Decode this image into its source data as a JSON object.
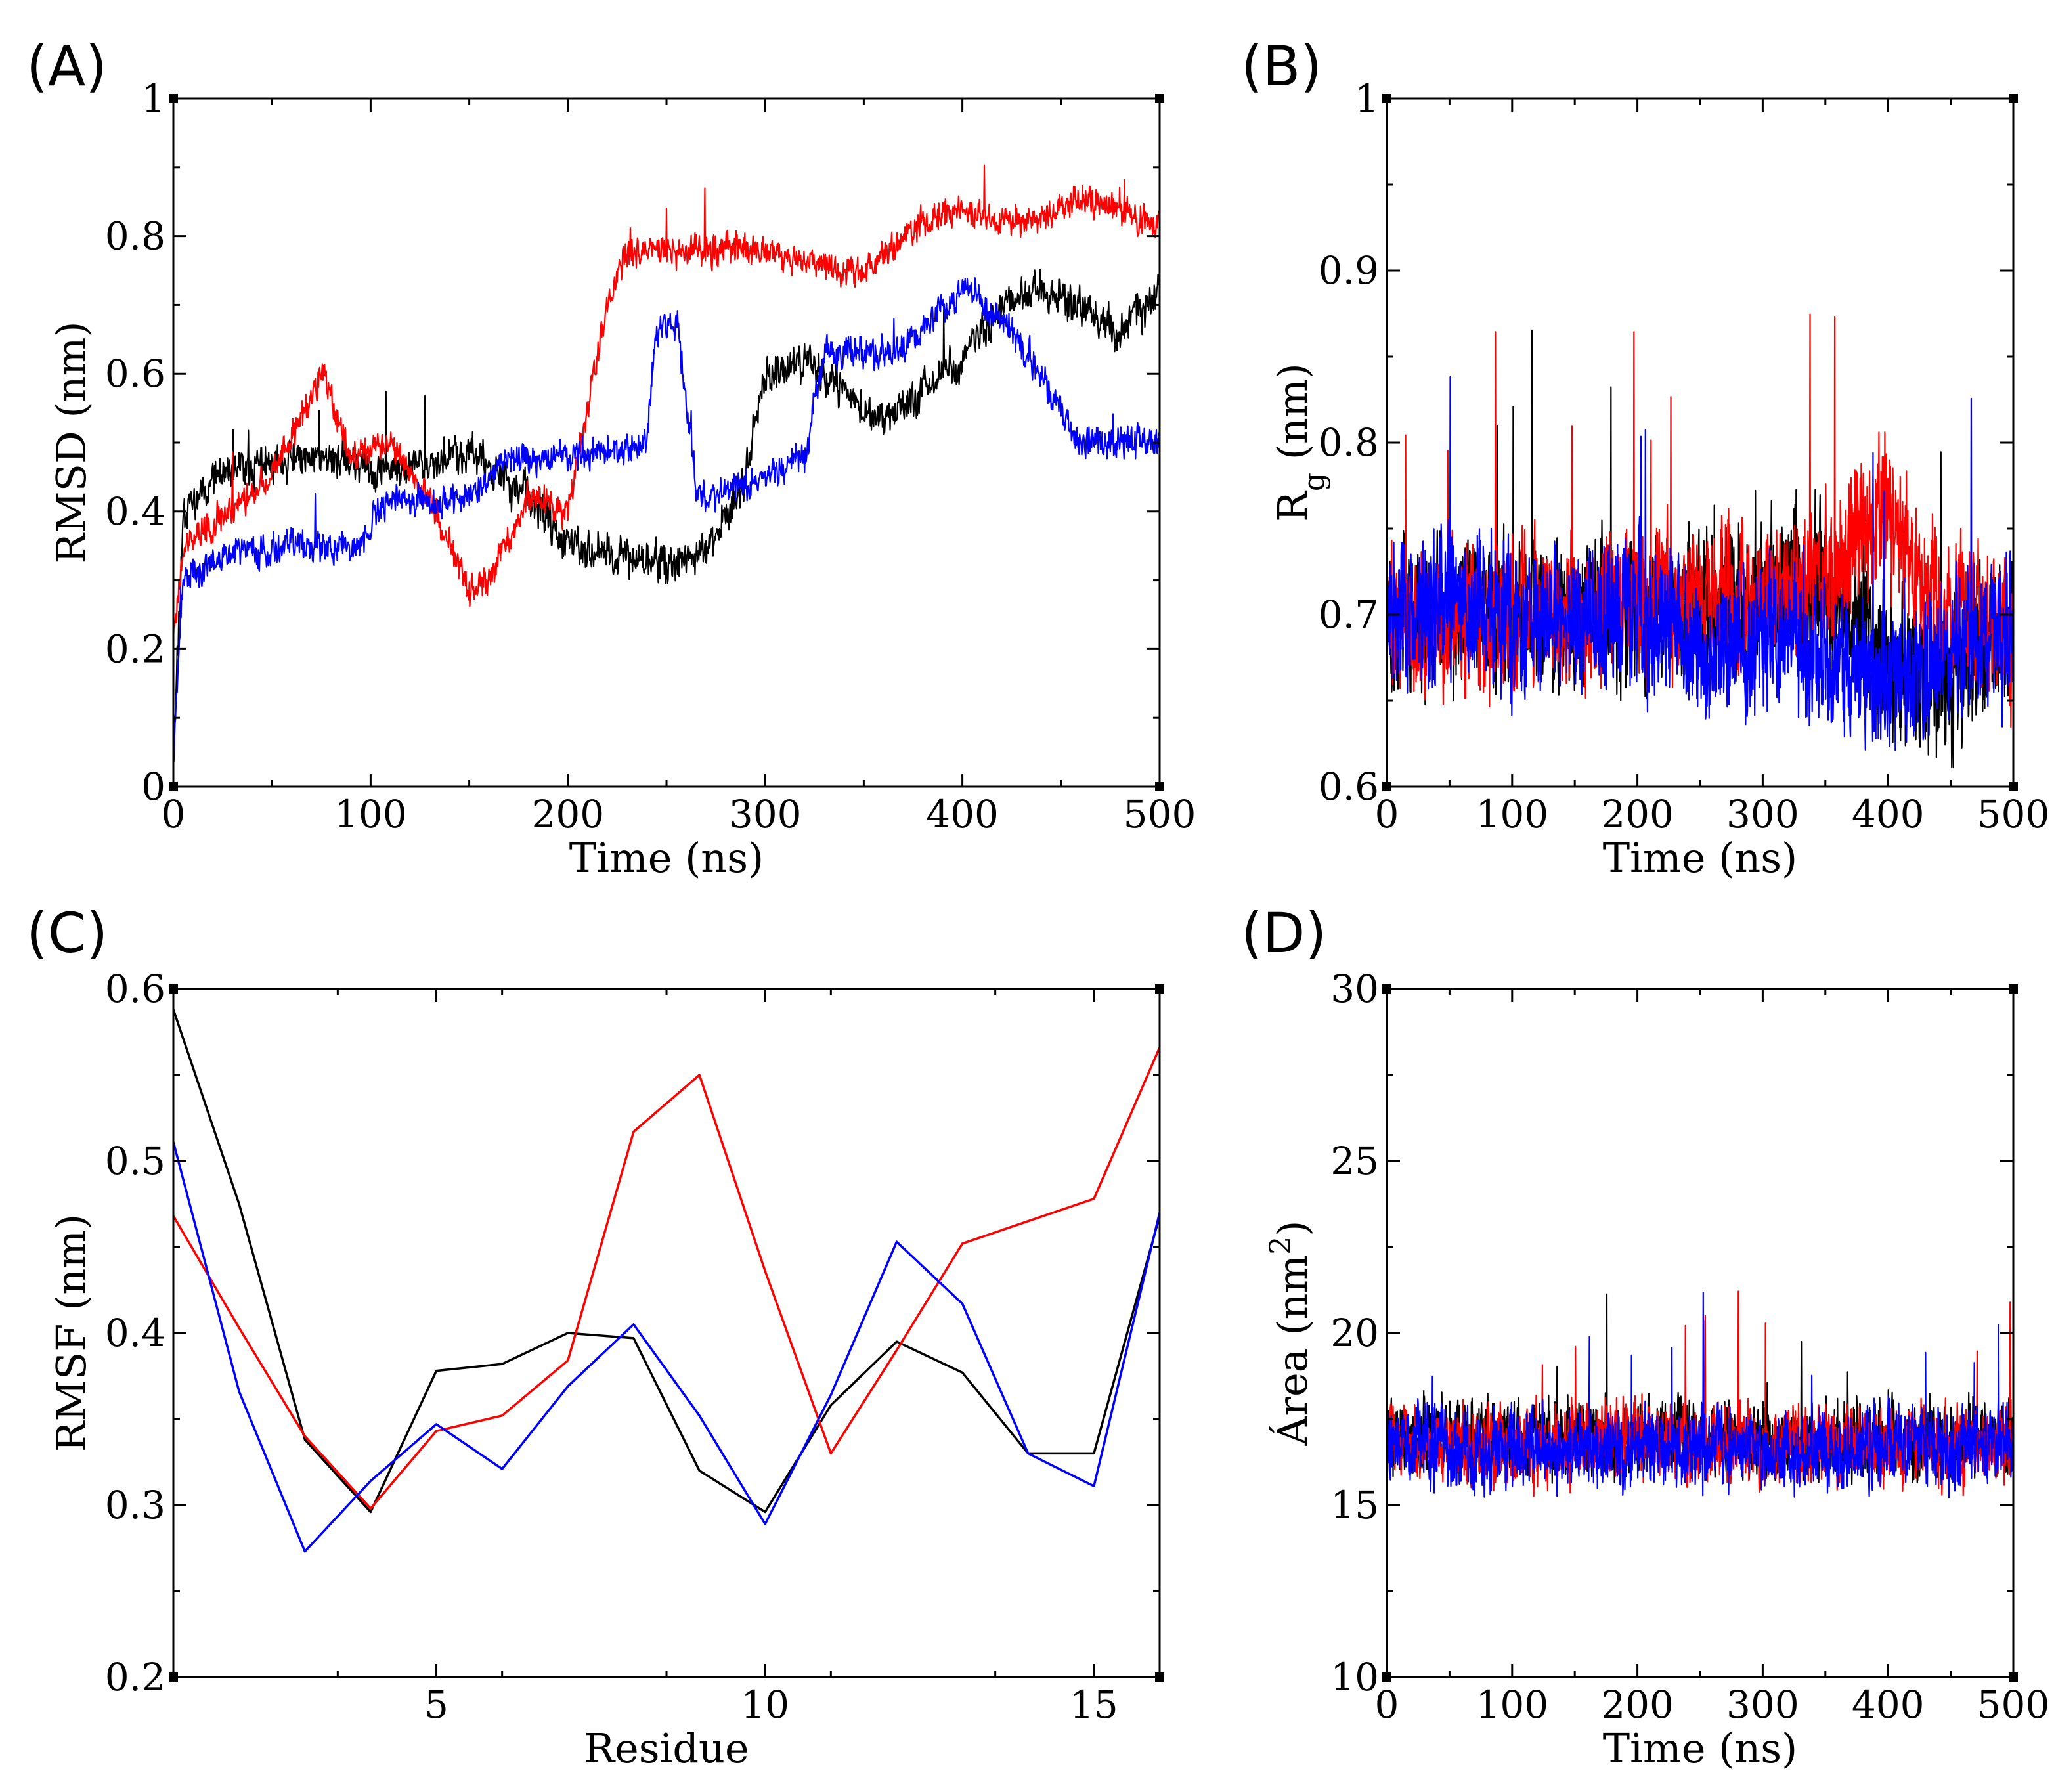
{
  "chart_data": [
    {
      "panel": "(A)",
      "type": "line",
      "xlabel": "Time (ns)",
      "ylabel": "RMSD (nm)",
      "xlim": [
        0,
        500
      ],
      "ylim": [
        0,
        1
      ],
      "xticks": [
        0,
        100,
        200,
        300,
        400,
        500
      ],
      "yticks": [
        0,
        0.2,
        0.4,
        0.6,
        0.8,
        1
      ],
      "ytick_labels": [
        "0",
        "0.2",
        "0.4",
        "0.6",
        "0.8",
        "1"
      ],
      "series": [
        {
          "color": "#000000",
          "noise": 0.06,
          "seed": 11,
          "x": [
            0,
            5,
            20,
            50,
            80,
            100,
            130,
            150,
            180,
            200,
            230,
            250,
            270,
            290,
            300,
            320,
            340,
            360,
            380,
            400,
            420,
            440,
            460,
            480,
            500
          ],
          "y": [
            0.05,
            0.4,
            0.45,
            0.47,
            0.48,
            0.46,
            0.47,
            0.49,
            0.42,
            0.35,
            0.33,
            0.32,
            0.34,
            0.45,
            0.6,
            0.62,
            0.58,
            0.52,
            0.58,
            0.62,
            0.7,
            0.72,
            0.7,
            0.66,
            0.72
          ]
        },
        {
          "color": "#ff0000",
          "noise": 0.05,
          "seed": 23,
          "x": [
            0,
            5,
            20,
            50,
            75,
            90,
            110,
            130,
            150,
            160,
            180,
            200,
            210,
            220,
            230,
            260,
            300,
            320,
            350,
            380,
            400,
            420,
            440,
            460,
            480,
            500
          ],
          "y": [
            0.22,
            0.35,
            0.38,
            0.45,
            0.6,
            0.48,
            0.5,
            0.42,
            0.28,
            0.3,
            0.42,
            0.4,
            0.55,
            0.7,
            0.78,
            0.78,
            0.78,
            0.76,
            0.75,
            0.82,
            0.84,
            0.82,
            0.83,
            0.85,
            0.84,
            0.82
          ]
        },
        {
          "color": "#0000ff",
          "noise": 0.05,
          "seed": 37,
          "x": [
            0,
            5,
            30,
            60,
            90,
            110,
            150,
            170,
            200,
            240,
            245,
            255,
            265,
            270,
            300,
            320,
            330,
            360,
            370,
            400,
            410,
            420,
            440,
            450,
            460,
            500
          ],
          "y": [
            0.05,
            0.3,
            0.34,
            0.35,
            0.34,
            0.42,
            0.42,
            0.48,
            0.48,
            0.5,
            0.66,
            0.68,
            0.44,
            0.42,
            0.45,
            0.48,
            0.63,
            0.63,
            0.64,
            0.72,
            0.7,
            0.68,
            0.6,
            0.54,
            0.5,
            0.5
          ]
        }
      ]
    },
    {
      "panel": "(B)",
      "type": "line",
      "xlabel": "Time (ns)",
      "ylabel_main": "R",
      "ylabel_sub": "g",
      "ylabel_rest": " (nm)",
      "xlim": [
        0,
        500
      ],
      "ylim": [
        0.6,
        1
      ],
      "xticks": [
        0,
        100,
        200,
        300,
        400,
        500
      ],
      "yticks": [
        0.6,
        0.7,
        0.8,
        0.9,
        1
      ],
      "ytick_labels": [
        "0.6",
        "0.7",
        "0.8",
        "0.9",
        "1"
      ],
      "series": [
        {
          "color": "#000000",
          "noise": 0.09,
          "seed": 51,
          "x": [
            0,
            100,
            200,
            300,
            350,
            400,
            450,
            500
          ],
          "y": [
            0.7,
            0.7,
            0.7,
            0.71,
            0.72,
            0.67,
            0.66,
            0.69
          ]
        },
        {
          "color": "#ff0000",
          "noise": 0.09,
          "seed": 63,
          "x": [
            0,
            100,
            200,
            300,
            350,
            380,
            400,
            420,
            450,
            500
          ],
          "y": [
            0.7,
            0.7,
            0.71,
            0.71,
            0.72,
            0.75,
            0.76,
            0.73,
            0.7,
            0.69
          ]
        },
        {
          "color": "#0000ff",
          "noise": 0.09,
          "seed": 77,
          "x": [
            0,
            100,
            200,
            250,
            300,
            400,
            450,
            500
          ],
          "y": [
            0.7,
            0.7,
            0.7,
            0.68,
            0.69,
            0.66,
            0.68,
            0.69
          ]
        }
      ]
    },
    {
      "panel": "(C)",
      "type": "line",
      "xlabel": "Residue",
      "ylabel": "RMSF (nm)",
      "xlim": [
        1,
        16
      ],
      "ylim": [
        0.2,
        0.6
      ],
      "xticks": [
        5,
        10,
        15
      ],
      "yticks": [
        0.2,
        0.3,
        0.4,
        0.5,
        0.6
      ],
      "ytick_labels": [
        "0.2",
        "0.3",
        "0.4",
        "0.5",
        "0.6"
      ],
      "series": [
        {
          "color": "#000000",
          "noise": 0,
          "seed": 0,
          "x": [
            1,
            2,
            3,
            4,
            5,
            6,
            7,
            8,
            9,
            10,
            11,
            12,
            13,
            14,
            15,
            16
          ],
          "y": [
            0.588,
            0.475,
            0.338,
            0.296,
            0.378,
            0.382,
            0.4,
            0.397,
            0.32,
            0.296,
            0.358,
            0.395,
            0.377,
            0.33,
            0.33,
            0.468
          ]
        },
        {
          "color": "#ff0000",
          "noise": 0,
          "seed": 0,
          "x": [
            1,
            2,
            3,
            4,
            5,
            6,
            7,
            8,
            9,
            10,
            11,
            12,
            13,
            14,
            15,
            16
          ],
          "y": [
            0.468,
            0.403,
            0.34,
            0.298,
            0.343,
            0.352,
            0.384,
            0.517,
            0.55,
            0.436,
            0.33,
            0.39,
            0.452,
            0.465,
            0.478,
            0.566
          ]
        },
        {
          "color": "#0000ff",
          "noise": 0,
          "seed": 0,
          "x": [
            1,
            2,
            3,
            4,
            5,
            6,
            7,
            8,
            9,
            10,
            11,
            12,
            13,
            14,
            15,
            16
          ],
          "y": [
            0.511,
            0.366,
            0.273,
            0.314,
            0.347,
            0.321,
            0.369,
            0.405,
            0.352,
            0.289,
            0.364,
            0.453,
            0.417,
            0.33,
            0.311,
            0.47
          ]
        }
      ]
    },
    {
      "panel": "(D)",
      "type": "line",
      "xlabel": "Time (ns)",
      "ylabel_main": "Área (nm",
      "ylabel_sup": "2",
      "ylabel_rest": ")",
      "xlim": [
        0,
        500
      ],
      "ylim": [
        10,
        30
      ],
      "xticks": [
        0,
        100,
        200,
        300,
        400,
        500
      ],
      "yticks": [
        10,
        15,
        20,
        25,
        30
      ],
      "ytick_labels": [
        "10",
        "15",
        "20",
        "25",
        "30"
      ],
      "series": [
        {
          "color": "#000000",
          "noise": 2.4,
          "seed": 91,
          "x": [
            0,
            100,
            200,
            300,
            400,
            500
          ],
          "y": [
            17.0,
            16.9,
            17.0,
            16.8,
            16.9,
            16.9
          ]
        },
        {
          "color": "#ff0000",
          "noise": 2.4,
          "seed": 103,
          "x": [
            0,
            100,
            200,
            300,
            400,
            500
          ],
          "y": [
            16.8,
            16.7,
            16.9,
            16.7,
            16.7,
            16.8
          ]
        },
        {
          "color": "#0000ff",
          "noise": 2.4,
          "seed": 117,
          "x": [
            0,
            100,
            200,
            300,
            400,
            500
          ],
          "y": [
            16.7,
            16.6,
            16.7,
            16.5,
            16.6,
            16.7
          ]
        }
      ]
    }
  ]
}
